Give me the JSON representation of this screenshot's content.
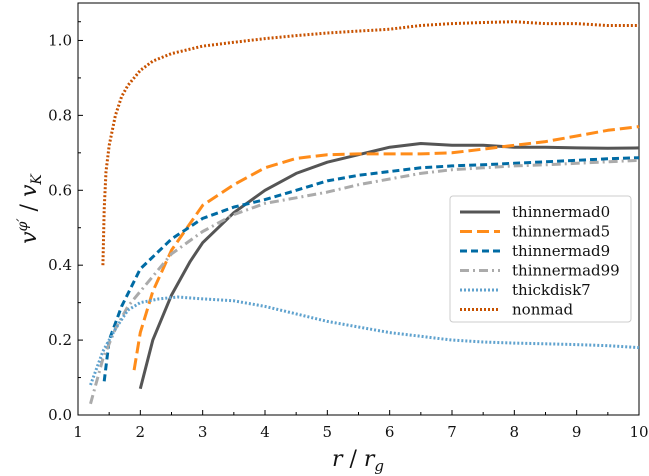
{
  "chart_data": {
    "type": "line",
    "xlabel": "r / r_g",
    "ylabel": "v^φ' / v_K",
    "xlim": [
      1,
      10
    ],
    "ylim": [
      0,
      1.1
    ],
    "xticks": [
      "1",
      "2",
      "3",
      "4",
      "5",
      "6",
      "7",
      "8",
      "9",
      "10"
    ],
    "yticks": [
      "0.0",
      "0.2",
      "0.4",
      "0.6",
      "0.8",
      "1.0"
    ],
    "grid": false,
    "legend_position": "center-right",
    "series": [
      {
        "name": "thinnermad0",
        "color": "#555555",
        "style": "solid",
        "x": [
          2.0,
          2.2,
          2.5,
          2.8,
          3.0,
          3.5,
          4.0,
          4.5,
          5.0,
          5.5,
          6.0,
          6.5,
          7.0,
          7.5,
          8.0,
          8.5,
          9.0,
          9.5,
          10.0
        ],
        "y": [
          0.07,
          0.2,
          0.32,
          0.41,
          0.46,
          0.54,
          0.6,
          0.645,
          0.675,
          0.695,
          0.715,
          0.725,
          0.72,
          0.72,
          0.715,
          0.715,
          0.713,
          0.712,
          0.713
        ]
      },
      {
        "name": "thinnermad5",
        "color": "#ff8c1a",
        "style": "dashed",
        "x": [
          1.9,
          2.0,
          2.2,
          2.5,
          3.0,
          3.5,
          4.0,
          4.5,
          5.0,
          5.5,
          6.0,
          6.5,
          7.0,
          7.5,
          8.0,
          8.5,
          9.0,
          9.5,
          10.0
        ],
        "y": [
          0.12,
          0.22,
          0.33,
          0.44,
          0.56,
          0.615,
          0.66,
          0.685,
          0.695,
          0.697,
          0.697,
          0.697,
          0.7,
          0.71,
          0.72,
          0.73,
          0.745,
          0.76,
          0.77
        ]
      },
      {
        "name": "thinnermad9",
        "color": "#006ba4",
        "style": "dashed",
        "x": [
          1.42,
          1.5,
          1.7,
          2.0,
          2.5,
          3.0,
          3.5,
          4.0,
          4.5,
          5.0,
          5.5,
          6.0,
          6.5,
          7.0,
          7.5,
          8.0,
          8.5,
          9.0,
          9.5,
          10.0
        ],
        "y": [
          0.09,
          0.2,
          0.29,
          0.39,
          0.47,
          0.525,
          0.555,
          0.575,
          0.6,
          0.625,
          0.64,
          0.65,
          0.66,
          0.665,
          0.668,
          0.672,
          0.676,
          0.68,
          0.684,
          0.687
        ]
      },
      {
        "name": "thinnermad99",
        "color": "#ababab",
        "style": "dashdot",
        "x": [
          1.2,
          1.4,
          1.6,
          1.8,
          2.0,
          2.5,
          3.0,
          3.5,
          4.0,
          4.5,
          5.0,
          5.5,
          6.0,
          6.5,
          7.0,
          7.5,
          8.0,
          8.5,
          9.0,
          9.5,
          10.0
        ],
        "y": [
          0.03,
          0.15,
          0.23,
          0.29,
          0.33,
          0.43,
          0.49,
          0.535,
          0.565,
          0.58,
          0.595,
          0.615,
          0.63,
          0.645,
          0.655,
          0.66,
          0.665,
          0.668,
          0.672,
          0.676,
          0.68
        ]
      },
      {
        "name": "thickdisk7",
        "color": "#5fa2ce",
        "style": "dotted",
        "x": [
          1.2,
          1.4,
          1.6,
          1.8,
          2.0,
          2.3,
          2.6,
          3.0,
          3.5,
          4.0,
          4.5,
          5.0,
          5.5,
          6.0,
          6.5,
          7.0,
          7.5,
          8.0,
          8.5,
          9.0,
          9.5,
          10.0
        ],
        "y": [
          0.08,
          0.17,
          0.23,
          0.28,
          0.3,
          0.31,
          0.315,
          0.31,
          0.305,
          0.29,
          0.27,
          0.25,
          0.235,
          0.22,
          0.21,
          0.2,
          0.195,
          0.192,
          0.19,
          0.188,
          0.185,
          0.18
        ]
      },
      {
        "name": "nonmad",
        "color": "#c85200",
        "style": "dotted",
        "x": [
          1.4,
          1.42,
          1.45,
          1.5,
          1.6,
          1.7,
          1.8,
          2.0,
          2.2,
          2.5,
          3.0,
          3.5,
          4.0,
          4.5,
          5.0,
          5.5,
          6.0,
          6.5,
          7.0,
          7.5,
          8.0,
          8.5,
          9.0,
          9.5,
          10.0
        ],
        "y": [
          0.4,
          0.55,
          0.65,
          0.72,
          0.8,
          0.85,
          0.88,
          0.92,
          0.945,
          0.965,
          0.985,
          0.995,
          1.005,
          1.013,
          1.02,
          1.025,
          1.03,
          1.04,
          1.045,
          1.048,
          1.05,
          1.045,
          1.045,
          1.04,
          1.04
        ]
      }
    ]
  }
}
